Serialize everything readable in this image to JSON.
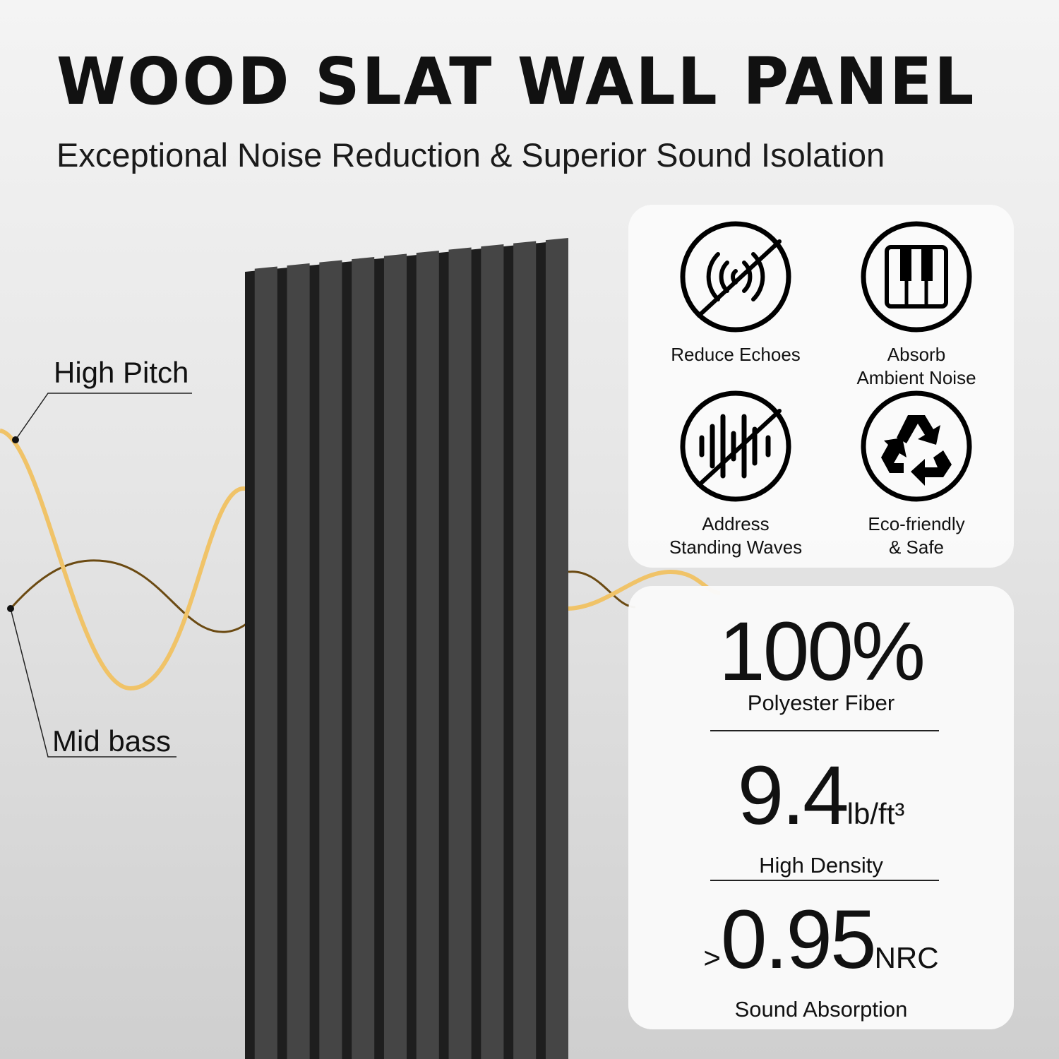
{
  "header": {
    "title": "WOOD SLAT WALL PANEL",
    "subtitle": "Exceptional Noise Reduction & Superior Sound Isolation"
  },
  "wave_labels": {
    "high": "High Pitch",
    "mid": "Mid bass"
  },
  "colors": {
    "high_wave": "#f0c368",
    "mid_wave": "#6b4a12",
    "panel": "#454545",
    "groove": "#1e1e1e"
  },
  "features": [
    {
      "label_1": "Reduce Echoes",
      "label_2": "",
      "icon": "no-echo-icon"
    },
    {
      "label_1": "Absorb",
      "label_2": "Ambient Noise",
      "icon": "piano-keys-icon"
    },
    {
      "label_1": "Address",
      "label_2": "Standing Waves",
      "icon": "no-soundwave-icon"
    },
    {
      "label_1": "Eco-friendly",
      "label_2": "& Safe",
      "icon": "recycle-icon"
    }
  ],
  "stats": [
    {
      "prefix": "",
      "value": "100%",
      "unit": "",
      "caption": "Polyester Fiber"
    },
    {
      "prefix": "",
      "value": "9.4",
      "unit": "lb/ft³",
      "caption": "High Density"
    },
    {
      "prefix": ">",
      "value": "0.95",
      "unit": "NRC",
      "caption": "Sound Absorption"
    }
  ]
}
